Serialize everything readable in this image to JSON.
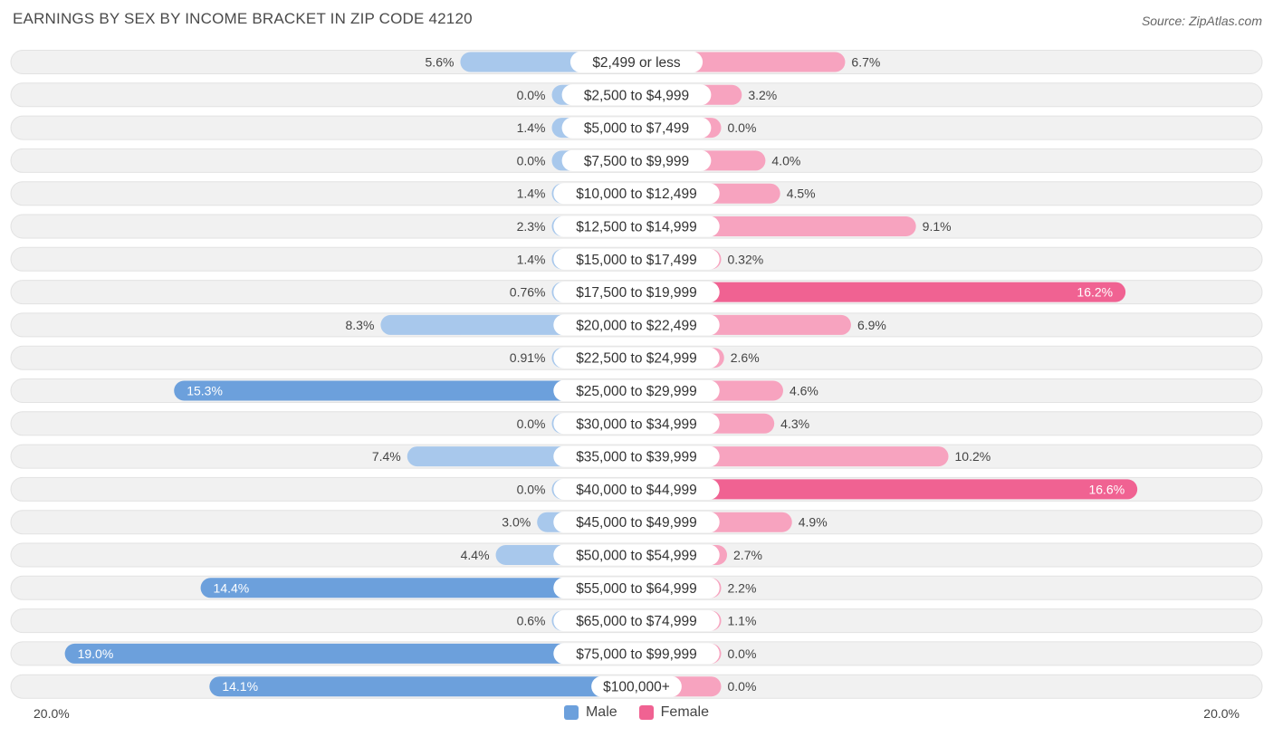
{
  "title": "EARNINGS BY SEX BY INCOME BRACKET IN ZIP CODE 42120",
  "source": "Source: ZipAtlas.com",
  "colors": {
    "male": "#6ca0dc",
    "male_light": "#a8c8ec",
    "female": "#f06292",
    "female_light": "#f7a3bf",
    "row_bg": "#f1f1f1"
  },
  "legend": {
    "male": "Male",
    "female": "Female"
  },
  "axis": {
    "left_label": "20.0%",
    "right_label": "20.0%"
  },
  "chart_data": {
    "type": "bar",
    "orientation": "horizontal-diverging",
    "title": "EARNINGS BY SEX BY INCOME BRACKET IN ZIP CODE 42120",
    "xlim": [
      -20,
      20
    ],
    "categories": [
      "$2,499 or less",
      "$2,500 to $4,999",
      "$5,000 to $7,499",
      "$7,500 to $9,999",
      "$10,000 to $12,499",
      "$12,500 to $14,999",
      "$15,000 to $17,499",
      "$17,500 to $19,999",
      "$20,000 to $22,499",
      "$22,500 to $24,999",
      "$25,000 to $29,999",
      "$30,000 to $34,999",
      "$35,000 to $39,999",
      "$40,000 to $44,999",
      "$45,000 to $49,999",
      "$50,000 to $54,999",
      "$55,000 to $64,999",
      "$65,000 to $74,999",
      "$75,000 to $99,999",
      "$100,000+"
    ],
    "series": [
      {
        "name": "Male",
        "values": [
          5.6,
          0.0,
          1.4,
          0.0,
          1.4,
          2.3,
          1.4,
          0.76,
          8.3,
          0.91,
          15.3,
          0.0,
          7.4,
          0.0,
          3.0,
          4.4,
          14.4,
          0.6,
          19.0,
          14.1
        ],
        "labels": [
          "5.6%",
          "0.0%",
          "1.4%",
          "0.0%",
          "1.4%",
          "2.3%",
          "1.4%",
          "0.76%",
          "8.3%",
          "0.91%",
          "15.3%",
          "0.0%",
          "7.4%",
          "0.0%",
          "3.0%",
          "4.4%",
          "14.4%",
          "0.6%",
          "19.0%",
          "14.1%"
        ]
      },
      {
        "name": "Female",
        "values": [
          6.7,
          3.2,
          0.0,
          4.0,
          4.5,
          9.1,
          0.32,
          16.2,
          6.9,
          2.6,
          4.6,
          4.3,
          10.2,
          16.6,
          4.9,
          2.7,
          2.2,
          1.1,
          0.0,
          0.0
        ],
        "labels": [
          "6.7%",
          "3.2%",
          "0.0%",
          "4.0%",
          "4.5%",
          "9.1%",
          "0.32%",
          "16.2%",
          "6.9%",
          "2.6%",
          "4.6%",
          "4.3%",
          "10.2%",
          "16.6%",
          "4.9%",
          "2.7%",
          "2.2%",
          "1.1%",
          "0.0%",
          "0.0%"
        ]
      }
    ]
  }
}
